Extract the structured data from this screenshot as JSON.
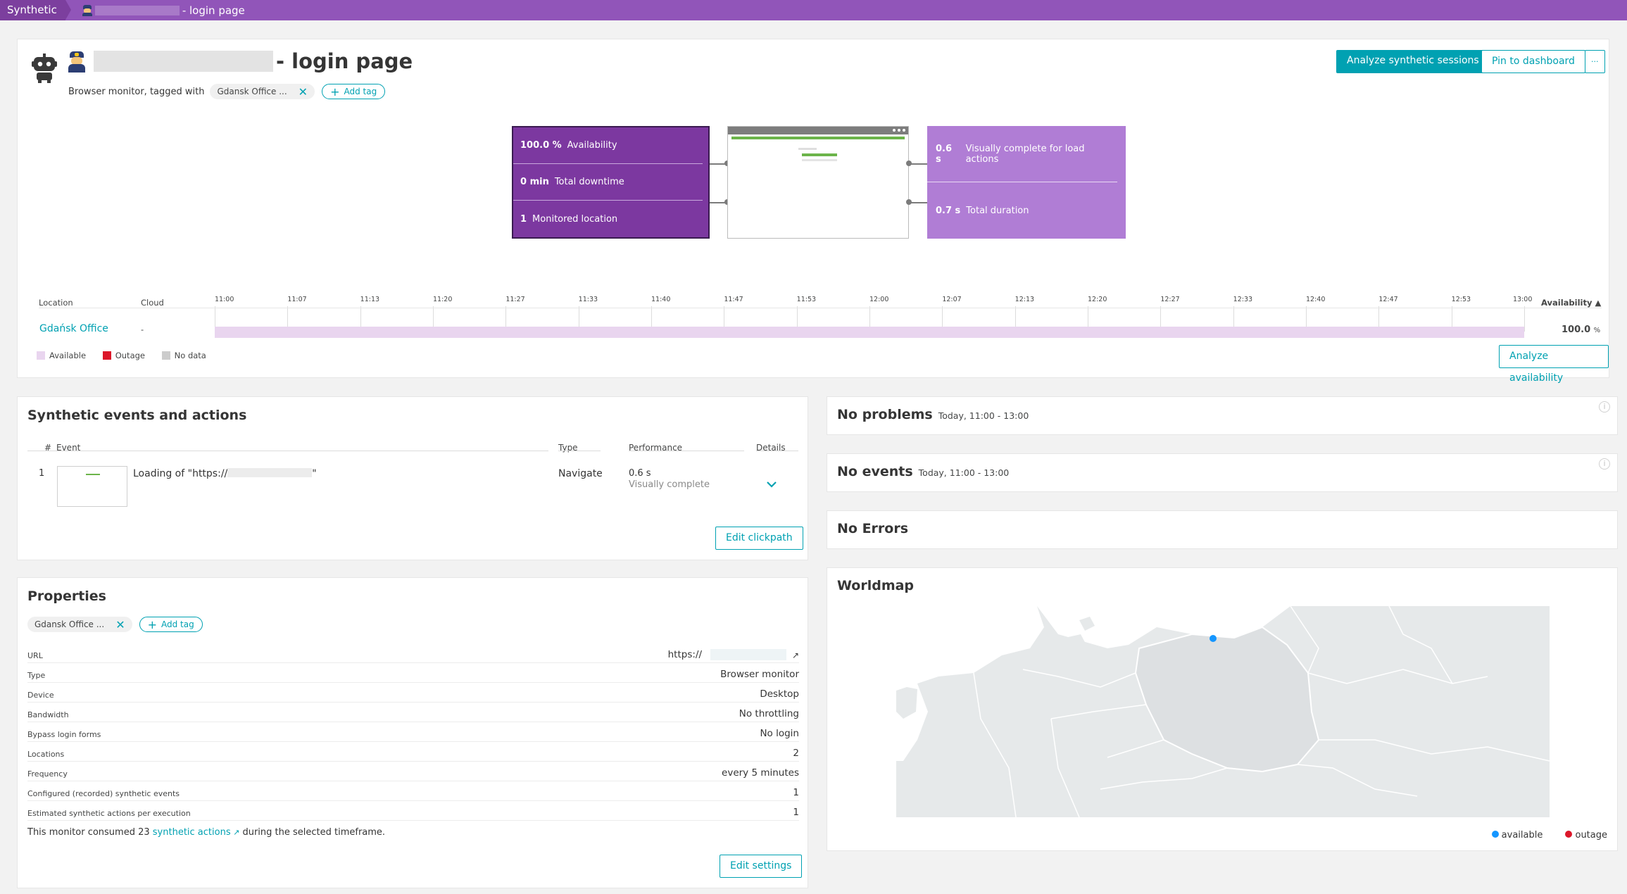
{
  "breadcrumb": {
    "root": "Synthetic",
    "current": "- login page"
  },
  "header": {
    "title_suffix": "- login page",
    "subtitle": "Browser monitor, tagged with",
    "tag": "Gdansk Office ...",
    "add_tag": "Add tag",
    "analyze_sessions": "Analyze synthetic sessions",
    "pin_dashboard": "Pin to dashboard",
    "more": "···"
  },
  "flow": {
    "left": [
      {
        "value": "100.0 %",
        "label": "Availability"
      },
      {
        "value": "0 min",
        "label": "Total downtime"
      },
      {
        "value": "1",
        "label": "Monitored location"
      }
    ],
    "right": [
      {
        "value": "0.6 s",
        "label": "Visually complete for load actions"
      },
      {
        "value": "0.7 s",
        "label": "Total duration"
      }
    ]
  },
  "timeline": {
    "col_location": "Location",
    "col_cloud": "Cloud",
    "col_availability": "Availability ▲",
    "ticks": [
      "11:00",
      "11:07",
      "11:13",
      "11:20",
      "11:27",
      "11:33",
      "11:40",
      "11:47",
      "11:53",
      "12:00",
      "12:07",
      "12:13",
      "12:20",
      "12:27",
      "12:33",
      "12:40",
      "12:47",
      "12:53",
      "13:00"
    ],
    "location": "Gdańsk Office",
    "cloud": "-",
    "availability": "100.0",
    "availability_unit": "%",
    "availability_fraction": 1.0,
    "legend": {
      "available": "Available",
      "outage": "Outage",
      "nodata": "No data"
    },
    "analyze_availability": "Analyze availability"
  },
  "colors": {
    "accent": "#00a1b2",
    "brand": "#9155b9",
    "available": "#e9d5ef",
    "outage": "#dc172a",
    "nodata": "#cccccc"
  },
  "events": {
    "title": "Synthetic events and actions",
    "headers": {
      "num": "#",
      "event": "Event",
      "type": "Type",
      "performance": "Performance",
      "details": "Details"
    },
    "rows": [
      {
        "num": "1",
        "event_prefix": "Loading of \"https://",
        "event_suffix": "\"",
        "type": "Navigate",
        "perf_value": "0.6 s",
        "perf_label": "Visually complete",
        "details_icon": "chevron-down-icon"
      }
    ],
    "edit_clickpath": "Edit clickpath"
  },
  "properties": {
    "title": "Properties",
    "tag": "Gdansk Office ...",
    "add_tag": "Add tag",
    "rows": [
      {
        "key": "URL",
        "value": "https://"
      },
      {
        "key": "Type",
        "value": "Browser monitor"
      },
      {
        "key": "Device",
        "value": "Desktop"
      },
      {
        "key": "Bandwidth",
        "value": "No throttling"
      },
      {
        "key": "Bypass login forms",
        "value": "No login"
      },
      {
        "key": "Locations",
        "value": "2"
      },
      {
        "key": "Frequency",
        "value": "every 5 minutes"
      },
      {
        "key": "Configured (recorded) synthetic events",
        "value": "1"
      },
      {
        "key": "Estimated synthetic actions per execution",
        "value": "1"
      }
    ],
    "consumed_prefix": "This monitor consumed 23 ",
    "consumed_link": "synthetic actions",
    "consumed_suffix": " during the selected timeframe.",
    "edit_settings": "Edit settings"
  },
  "problems": {
    "title": "No problems",
    "range": "Today, 11:00 - 13:00"
  },
  "event_panel": {
    "title": "No events",
    "range": "Today, 11:00 - 13:00"
  },
  "errors": {
    "title": "No Errors"
  },
  "worldmap": {
    "title": "Worldmap",
    "legend_available": "available",
    "legend_outage": "outage"
  }
}
